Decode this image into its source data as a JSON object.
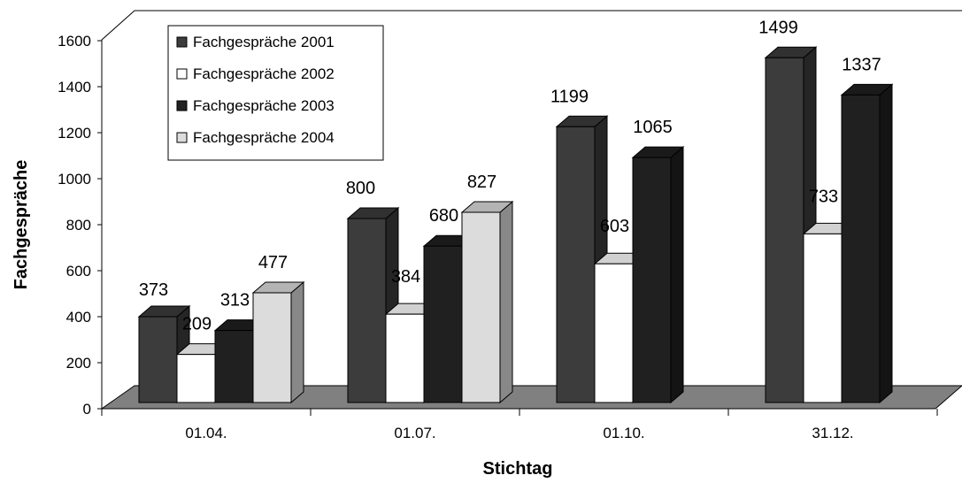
{
  "chart_data": {
    "type": "bar",
    "title": "",
    "xlabel": "Stichtag",
    "ylabel": "Fachgespräche",
    "categories": [
      "01.04.",
      "01.07.",
      "01.10.",
      "31.12."
    ],
    "ylim": [
      0,
      1600
    ],
    "yticks": [
      "0",
      "200",
      "400",
      "600",
      "800",
      "1000",
      "1200",
      "1400",
      "1600"
    ],
    "legend_position": "top-left",
    "grid": false,
    "series": [
      {
        "name": "Fachgespräche 2001",
        "color": "#3c3c3c",
        "values": [
          373,
          800,
          1199,
          1499
        ]
      },
      {
        "name": "Fachgespräche 2002",
        "color": "#ffffff",
        "values": [
          209,
          384,
          603,
          733
        ]
      },
      {
        "name": "Fachgespräche 2003",
        "color": "#202020",
        "values": [
          313,
          680,
          1065,
          1337
        ]
      },
      {
        "name": "Fachgespräche 2004",
        "color": "#dcdcdc",
        "values": [
          477,
          827,
          null,
          null
        ]
      }
    ]
  }
}
